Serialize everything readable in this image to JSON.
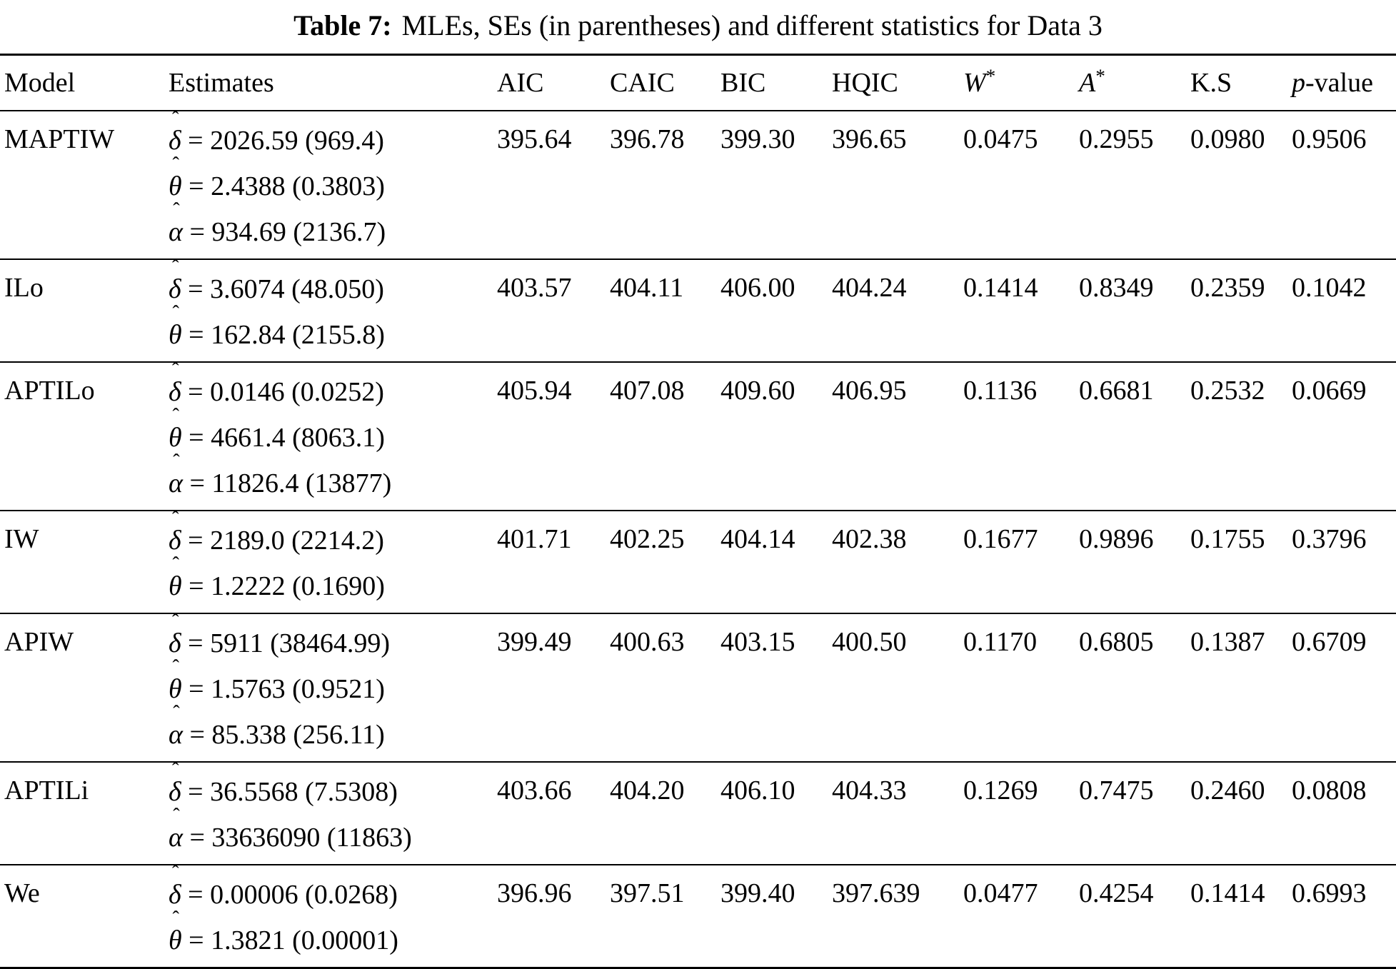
{
  "title": {
    "label": "Table 7:",
    "text": "MLEs, SEs (in parentheses) and different statistics for Data 3"
  },
  "header": {
    "model": "Model",
    "estimates": "Estimates",
    "aic": "AIC",
    "caic": "CAIC",
    "bic": "BIC",
    "hqic": "HQIC",
    "w": "W",
    "w_sup": "*",
    "a": "A",
    "a_sup": "*",
    "ks": "K.S",
    "p": "p",
    "p_suffix": "-value"
  },
  "rows": [
    {
      "model": "MAPTIW",
      "estimates": [
        {
          "sym": "δ",
          "value": "2026.59",
          "se": "969.4"
        },
        {
          "sym": "θ",
          "value": "2.4388",
          "se": "0.3803"
        },
        {
          "sym": "α",
          "value": "934.69",
          "se": "2136.7"
        }
      ],
      "aic": "395.64",
      "caic": "396.78",
      "bic": "399.30",
      "hqic": "396.65",
      "w": "0.0475",
      "a": "0.2955",
      "ks": "0.0980",
      "p": "0.9506"
    },
    {
      "model": "ILo",
      "estimates": [
        {
          "sym": "δ",
          "value": "3.6074",
          "se": "48.050"
        },
        {
          "sym": "θ",
          "value": "162.84",
          "se": "2155.8"
        }
      ],
      "aic": "403.57",
      "caic": "404.11",
      "bic": "406.00",
      "hqic": "404.24",
      "w": "0.1414",
      "a": "0.8349",
      "ks": "0.2359",
      "p": "0.1042"
    },
    {
      "model": "APTILo",
      "estimates": [
        {
          "sym": "δ",
          "value": "0.0146",
          "se": "0.0252"
        },
        {
          "sym": "θ",
          "value": "4661.4",
          "se": "8063.1"
        },
        {
          "sym": "α",
          "value": "11826.4",
          "se": "13877"
        }
      ],
      "aic": "405.94",
      "caic": "407.08",
      "bic": "409.60",
      "hqic": "406.95",
      "w": "0.1136",
      "a": "0.6681",
      "ks": "0.2532",
      "p": "0.0669"
    },
    {
      "model": "IW",
      "estimates": [
        {
          "sym": "δ",
          "value": "2189.0",
          "se": "2214.2"
        },
        {
          "sym": "θ",
          "value": "1.2222",
          "se": "0.1690"
        }
      ],
      "aic": "401.71",
      "caic": "402.25",
      "bic": "404.14",
      "hqic": "402.38",
      "w": "0.1677",
      "a": "0.9896",
      "ks": "0.1755",
      "p": "0.3796"
    },
    {
      "model": "APIW",
      "estimates": [
        {
          "sym": "δ",
          "value": "5911",
          "se": "38464.99"
        },
        {
          "sym": "θ",
          "value": "1.5763",
          "se": "0.9521"
        },
        {
          "sym": "α",
          "value": "85.338",
          "se": "256.11"
        }
      ],
      "aic": "399.49",
      "caic": "400.63",
      "bic": "403.15",
      "hqic": "400.50",
      "w": "0.1170",
      "a": "0.6805",
      "ks": "0.1387",
      "p": "0.6709"
    },
    {
      "model": "APTILi",
      "estimates": [
        {
          "sym": "δ",
          "value": "36.5568",
          "se": "7.5308"
        },
        {
          "sym": "α",
          "value": "33636090",
          "se": "11863"
        }
      ],
      "aic": "403.66",
      "caic": "404.20",
      "bic": "406.10",
      "hqic": "404.33",
      "w": "0.1269",
      "a": "0.7475",
      "ks": "0.2460",
      "p": "0.0808"
    },
    {
      "model": "We",
      "estimates": [
        {
          "sym": "δ",
          "value": "0.00006",
          "se": "0.0268"
        },
        {
          "sym": "θ",
          "value": "1.3821",
          "se": "0.00001"
        }
      ],
      "aic": "396.96",
      "caic": "397.51",
      "bic": "399.40",
      "hqic": "397.639",
      "w": "0.0477",
      "a": "0.4254",
      "ks": "0.1414",
      "p": "0.6993"
    }
  ]
}
